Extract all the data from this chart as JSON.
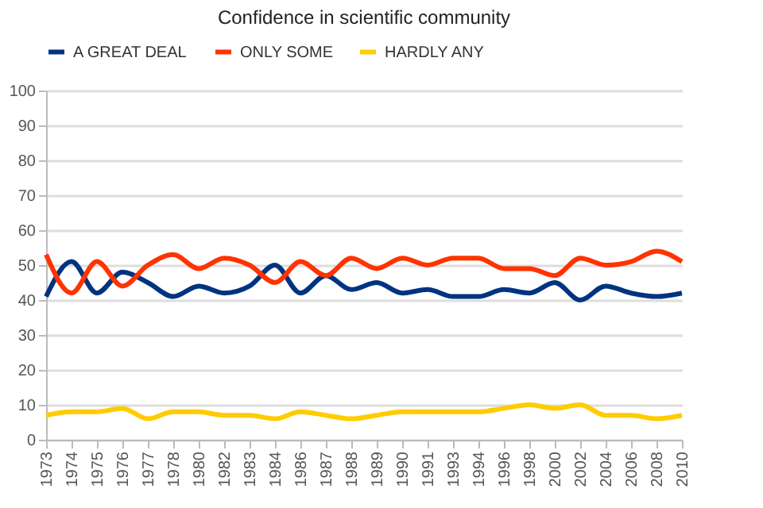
{
  "chart_data": {
    "type": "line",
    "title": "Confidence in scientific community",
    "categories": [
      "1973",
      "1974",
      "1975",
      "1976",
      "1977",
      "1978",
      "1980",
      "1982",
      "1983",
      "1984",
      "1986",
      "1987",
      "1988",
      "1989",
      "1990",
      "1991",
      "1993",
      "1994",
      "1996",
      "1998",
      "2000",
      "2002",
      "2004",
      "2006",
      "2008",
      "2010"
    ],
    "series": [
      {
        "name": "A GREAT DEAL",
        "color": "#003380",
        "values": [
          41,
          51,
          42,
          48,
          45,
          41,
          44,
          42,
          44,
          50,
          42,
          47,
          43,
          45,
          42,
          43,
          41,
          41,
          43,
          42,
          45,
          40,
          44,
          42,
          41,
          42
        ]
      },
      {
        "name": "ONLY SOME",
        "color": "#ff3300",
        "values": [
          53,
          42,
          51,
          44,
          50,
          53,
          49,
          52,
          50,
          45,
          51,
          47,
          52,
          49,
          52,
          50,
          52,
          52,
          49,
          49,
          47,
          52,
          50,
          51,
          54,
          51
        ]
      },
      {
        "name": "HARDLY ANY",
        "color": "#ffcc00",
        "values": [
          7,
          8,
          8,
          9,
          6,
          8,
          8,
          7,
          7,
          6,
          8,
          7,
          6,
          7,
          8,
          8,
          8,
          8,
          9,
          10,
          9,
          10,
          7,
          7,
          6,
          7
        ]
      }
    ],
    "ylim": [
      0,
      100
    ],
    "yticks": [
      0,
      10,
      20,
      30,
      40,
      50,
      60,
      70,
      80,
      90,
      100
    ],
    "grid": "y",
    "legend": "top",
    "marker": "none",
    "line_style": "solid"
  }
}
